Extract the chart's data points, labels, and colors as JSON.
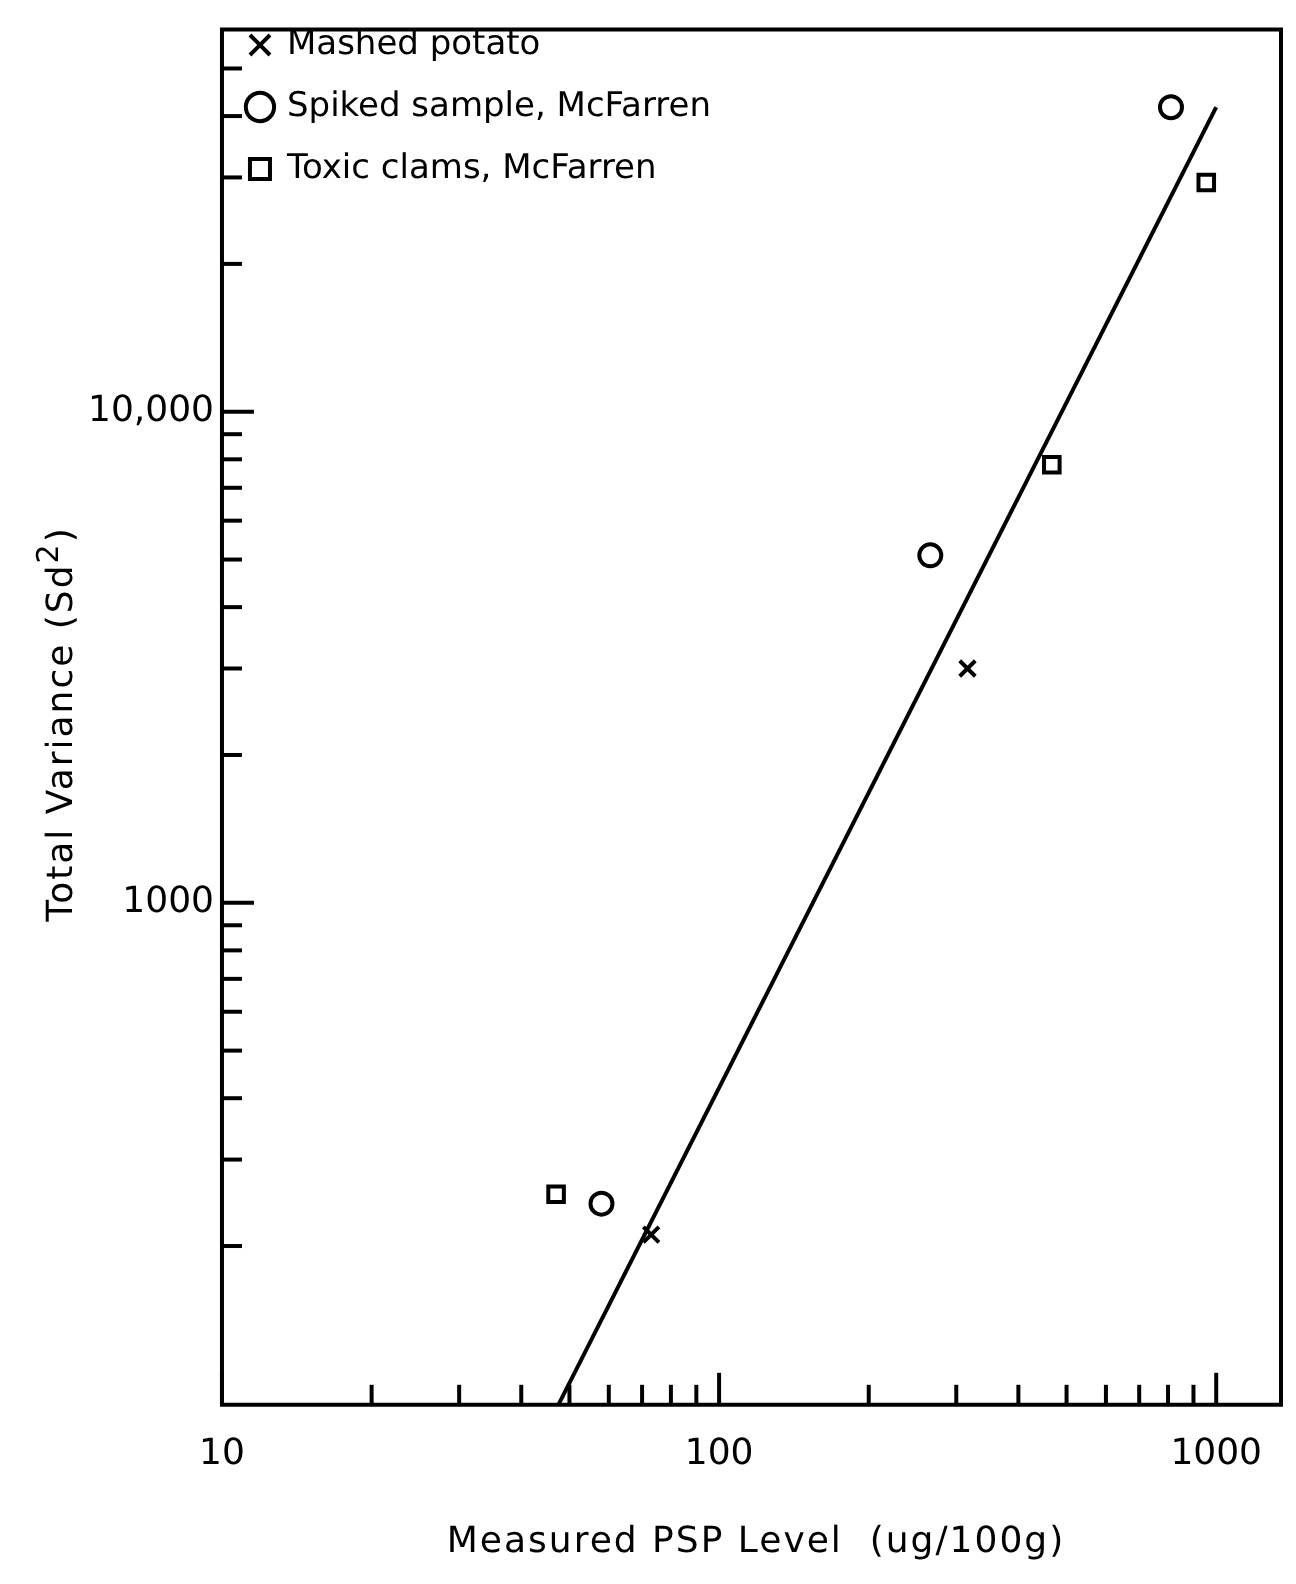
{
  "chart_data": {
    "type": "scatter",
    "xlabel": "Measured PSP Level  (ug/100g)",
    "ylabel": "Total Variance (Sd$^{2}$)",
    "log": "xy",
    "grid": false,
    "legend": "top left",
    "xlim": [
      10,
      1350
    ],
    "ylim": [
      95,
      60000
    ],
    "xticks": [
      10,
      {
        "value": 20,
        "label": null
      },
      {
        "value": 30,
        "label": null
      },
      {
        "value": 40,
        "label": null
      },
      {
        "value": 50,
        "label": null
      },
      {
        "value": 60,
        "label": null
      },
      {
        "value": 70,
        "label": null
      },
      {
        "value": 80,
        "label": null
      },
      {
        "value": 90,
        "label": null
      },
      100,
      {
        "value": 200,
        "label": null
      },
      {
        "value": 300,
        "label": null
      },
      {
        "value": 400,
        "label": null
      },
      {
        "value": 500,
        "label": null
      },
      {
        "value": 600,
        "label": null
      },
      {
        "value": 700,
        "label": null
      },
      {
        "value": 800,
        "label": null
      },
      {
        "value": 900,
        "label": null
      },
      1000
    ],
    "yticks": [
      {
        "value": 200,
        "label": null
      },
      {
        "value": 300,
        "label": null
      },
      {
        "value": 400,
        "label": null
      },
      {
        "value": 500,
        "label": null
      },
      {
        "value": 600,
        "label": null
      },
      {
        "value": 700,
        "label": null
      },
      {
        "value": 800,
        "label": null
      },
      {
        "value": 900,
        "label": null
      },
      1000,
      {
        "value": 2000,
        "label": null
      },
      {
        "value": 3000,
        "label": null
      },
      {
        "value": 4000,
        "label": null
      },
      {
        "value": 5000,
        "label": null
      },
      {
        "value": 6000,
        "label": null
      },
      {
        "value": 7000,
        "label": null
      },
      {
        "value": 8000,
        "label": null
      },
      {
        "value": 9000,
        "label": null
      },
      {
        "value": 10000,
        "label": "10,000"
      },
      {
        "value": 20000,
        "label": null
      },
      {
        "value": 30000,
        "label": null
      },
      {
        "value": 40000,
        "label": null
      },
      {
        "value": 50000,
        "label": null
      }
    ],
    "series": [
      {
        "name": "Mashed potato",
        "color": "#000000",
        "marker": "cross",
        "x": [
          73,
          316
        ],
        "values": [
          211,
          3000
        ]
      },
      {
        "name": "Spiked sample, McFarren",
        "color": "#000000",
        "marker": "circle",
        "x": [
          58,
          266,
          811
        ],
        "values": [
          244,
          5100,
          41700
        ]
      },
      {
        "name": "Toxic clams, McFarren",
        "color": "#000000",
        "marker": "square",
        "x": [
          47,
          467,
          955
        ],
        "values": [
          255,
          7800,
          29300
        ]
      },
      {
        "type": "line",
        "color": "#000000",
        "marker": "none",
        "line_style": "solid",
        "x": [
          47.5,
          1000
        ],
        "values": [
          95,
          41700
        ]
      }
    ]
  }
}
